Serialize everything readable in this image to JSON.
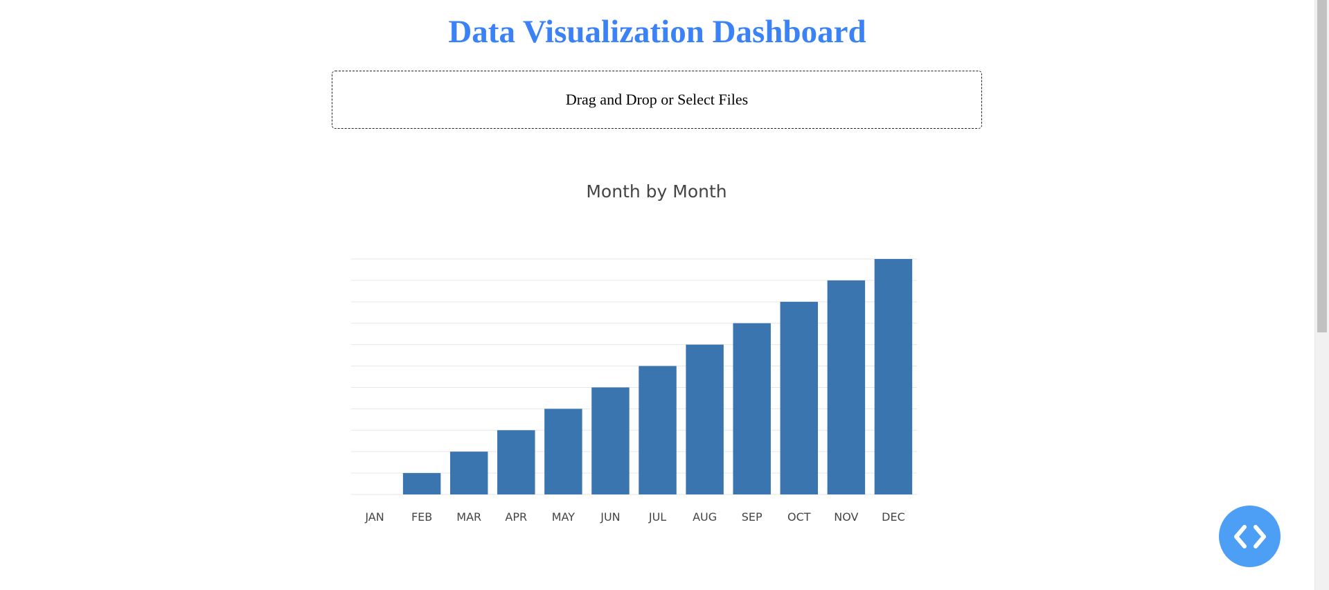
{
  "title": "Data Visualization Dashboard",
  "upload": {
    "label": "Drag and Drop or Select Files"
  },
  "colors": {
    "title": "#3b82f6",
    "bar": "#3b75af",
    "grid": "#e6e6e6",
    "axis_text": "#444444",
    "fab": "#4d9ef5"
  },
  "fab": {
    "icon": "code-icon"
  },
  "chart_data": {
    "type": "bar",
    "title": "Month by Month",
    "xlabel": "",
    "ylabel": "",
    "categories": [
      "JAN",
      "FEB",
      "MAR",
      "APR",
      "MAY",
      "JUN",
      "JUL",
      "AUG",
      "SEP",
      "OCT",
      "NOV",
      "DEC"
    ],
    "values": [
      "JAN",
      "FEB",
      "MAR",
      "APR",
      "MAY",
      "JUN",
      "JUL",
      "AUG",
      "SEP",
      "OCT",
      "NOV",
      "DEC"
    ],
    "y_categories": [
      "JAN",
      "FEB",
      "MAR",
      "APR",
      "MAY",
      "JUN",
      "JUL",
      "AUG",
      "SEP",
      "OCT",
      "NOV",
      "DEC"
    ],
    "grid": true,
    "legend": false
  }
}
